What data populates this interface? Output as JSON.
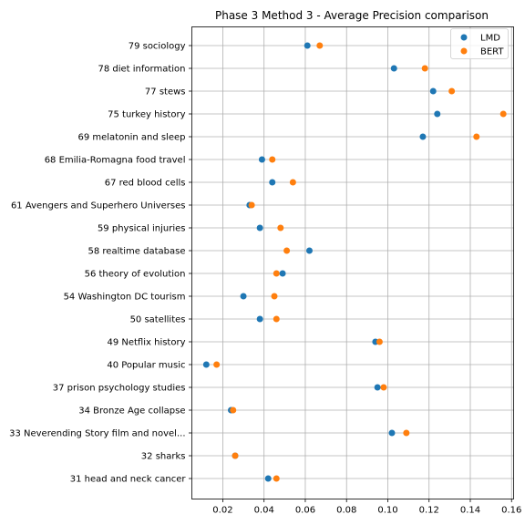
{
  "chart_data": {
    "type": "scatter",
    "title": "Phase 3 Method 3 - Average Precision comparison",
    "xlabel": "",
    "ylabel": "",
    "xlim": [
      0.005,
      0.161
    ],
    "xticks": [
      "0.02",
      "0.04",
      "0.06",
      "0.08",
      "0.10",
      "0.12",
      "0.14",
      "0.16"
    ],
    "grid": true,
    "legend_position": "top-right",
    "categories": [
      "79 sociology",
      "78 diet information",
      "77 stews",
      "75 turkey history",
      "69 melatonin and sleep",
      "68 Emilia-Romagna food travel",
      "67 red blood cells",
      "61 Avengers and Superhero Universes",
      "59 physical injuries",
      "58 realtime database",
      "56 theory of evolution",
      "54 Washington DC tourism",
      "50 satellites",
      "49 Netflix history",
      "40 Popular music",
      "37 prison psychology studies",
      "34 Bronze Age collapse",
      "33 Neverending Story film and novel...",
      "32 sharks",
      "31 head and neck cancer"
    ],
    "series": [
      {
        "name": "LMD",
        "color": "#1f77b4",
        "values": [
          0.061,
          0.103,
          0.122,
          0.124,
          0.117,
          0.039,
          0.044,
          0.033,
          0.038,
          0.062,
          0.049,
          0.03,
          0.038,
          0.094,
          0.012,
          0.095,
          0.024,
          0.102,
          0.026,
          0.042
        ]
      },
      {
        "name": "BERT",
        "color": "#ff7f0e",
        "values": [
          0.067,
          0.118,
          0.131,
          0.156,
          0.143,
          0.044,
          0.054,
          0.034,
          0.048,
          0.051,
          0.046,
          0.045,
          0.046,
          0.096,
          0.017,
          0.098,
          0.025,
          0.109,
          0.026,
          0.046
        ]
      }
    ]
  }
}
